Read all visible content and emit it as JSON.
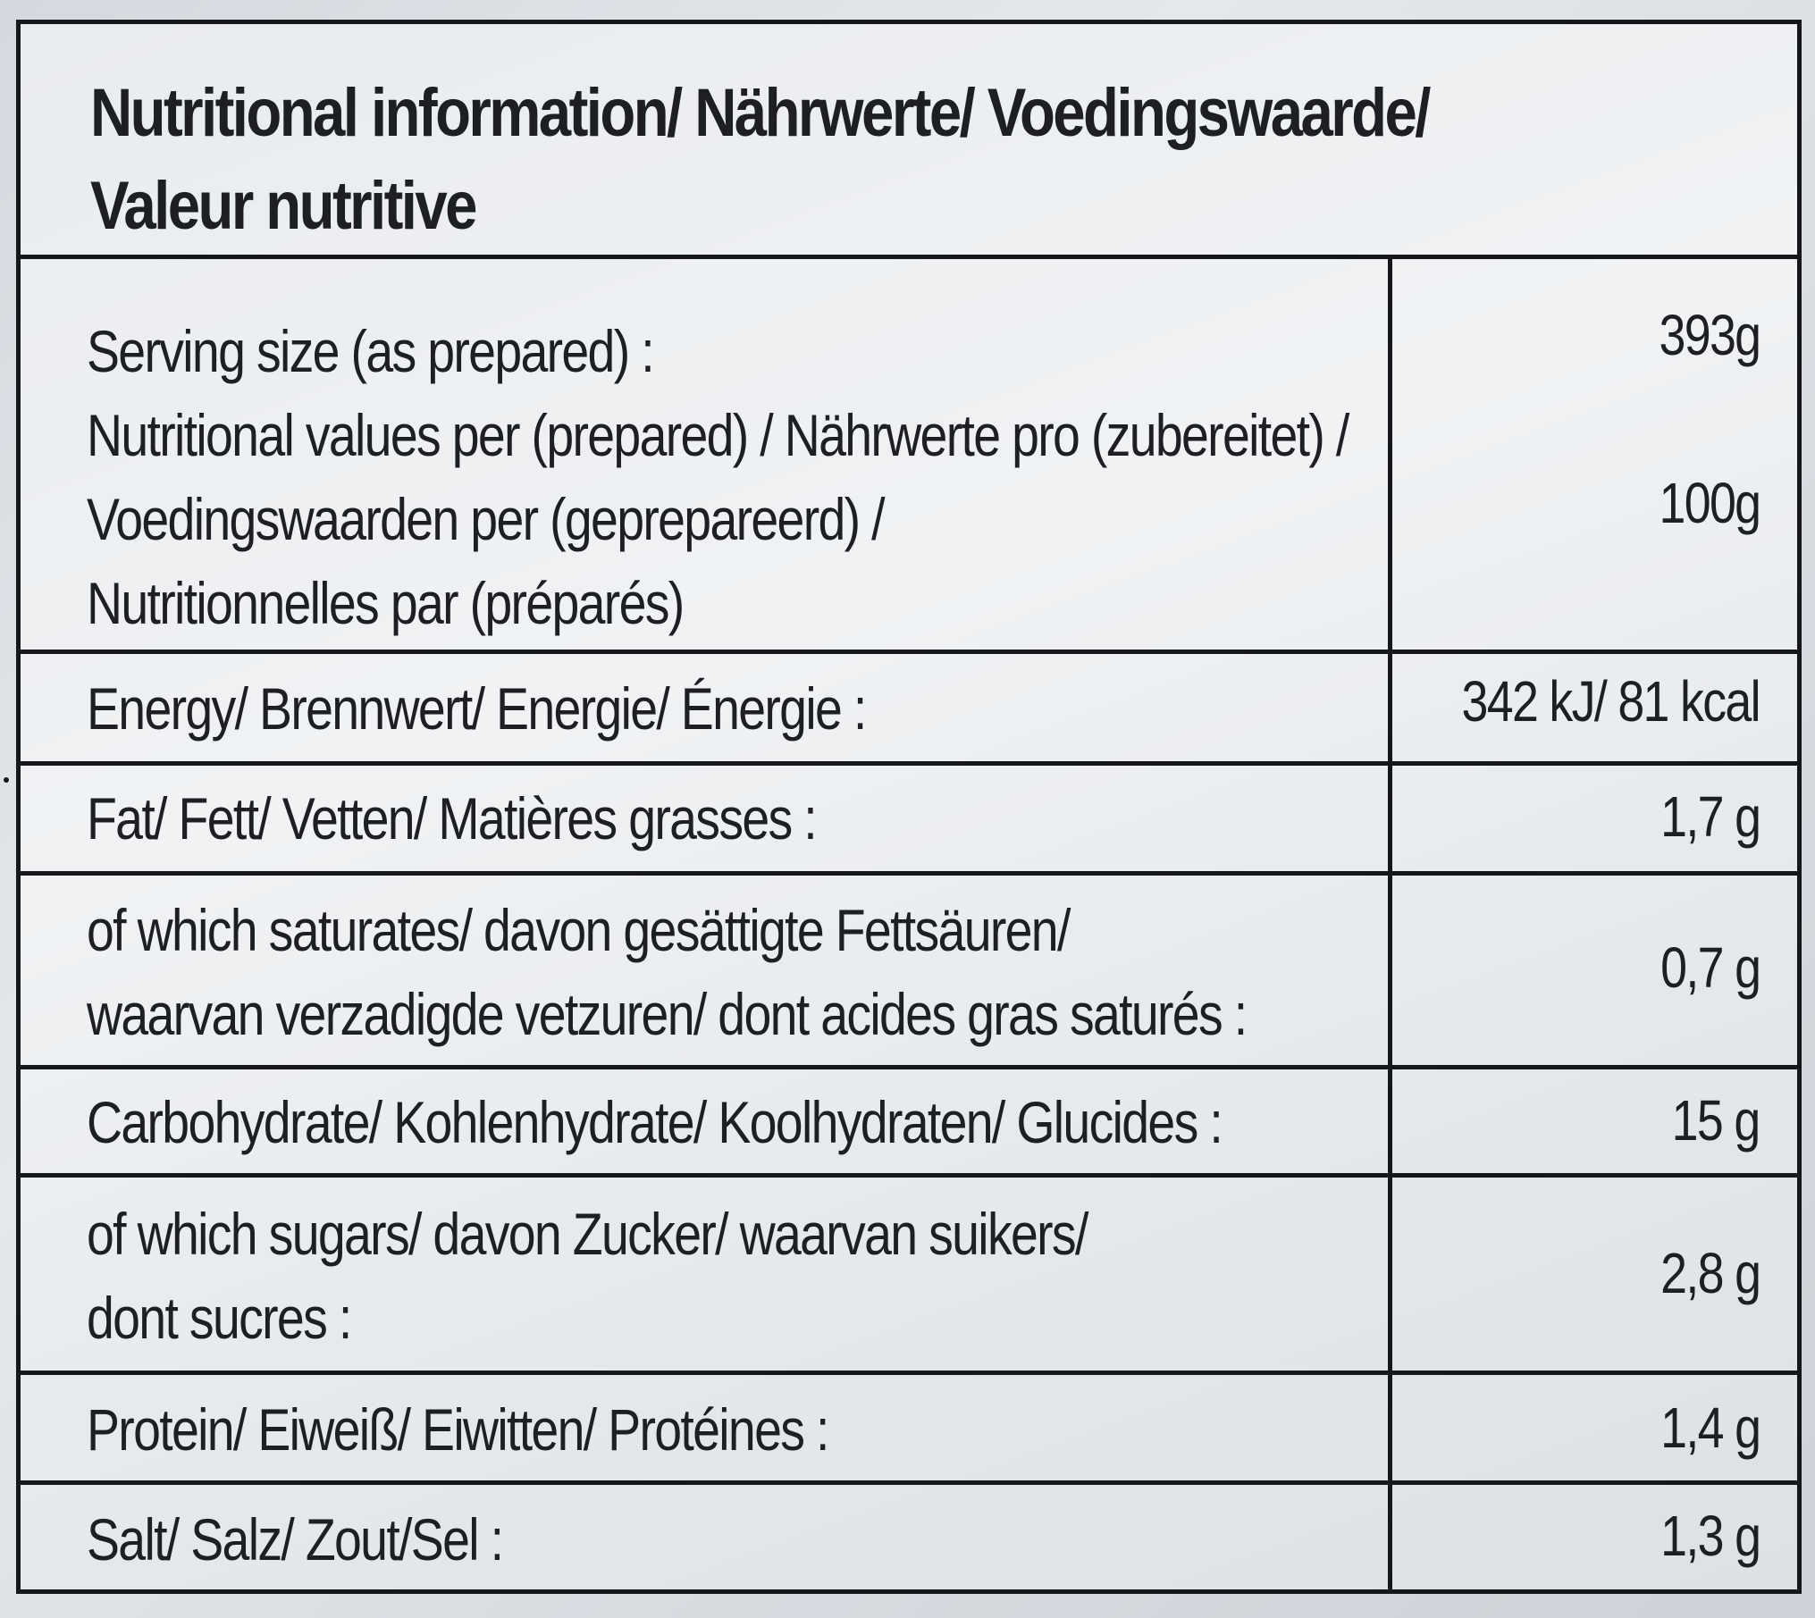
{
  "title": {
    "line1": "Nutritional information/ Nährwerte/ Voedingswaarde/",
    "line2": "Valeur nutritive"
  },
  "serving": {
    "label_line1": "Serving size (as prepared) :",
    "label_line2": "Nutritional values per (prepared) / Nährwerte pro (zubereitet) /",
    "label_line3": "Voedingswaarden per (geprepareerd) /",
    "label_line4": "Nutritionnelles par (préparés)",
    "serving_value": "393g",
    "per_value": "100g"
  },
  "rows": [
    {
      "label_line1": "Energy/ Brennwert/ Energie/ Énergie :",
      "label_line2": "",
      "value": "342 kJ/ 81 kcal"
    },
    {
      "label_line1": "Fat/ Fett/ Vetten/ Matières grasses :",
      "label_line2": "",
      "value": "1,7 g"
    },
    {
      "label_line1": "of which saturates/ davon gesättigte Fettsäuren/",
      "label_line2": "waarvan verzadigde vetzuren/ dont acides gras saturés :",
      "value": "0,7 g"
    },
    {
      "label_line1": "Carbohydrate/ Kohlenhydrate/ Koolhydraten/ Glucides :",
      "label_line2": "",
      "value": "15 g"
    },
    {
      "label_line1": "of which sugars/ davon Zucker/ waarvan suikers/",
      "label_line2": "dont sucres :",
      "value": "2,8 g"
    },
    {
      "label_line1": "Protein/ Eiweiß/ Eiwitten/ Protéines :",
      "label_line2": "",
      "value": "1,4 g"
    },
    {
      "label_line1": "Salt/ Salz/ Zout/Sel :",
      "label_line2": "",
      "value": "1,3 g"
    }
  ]
}
